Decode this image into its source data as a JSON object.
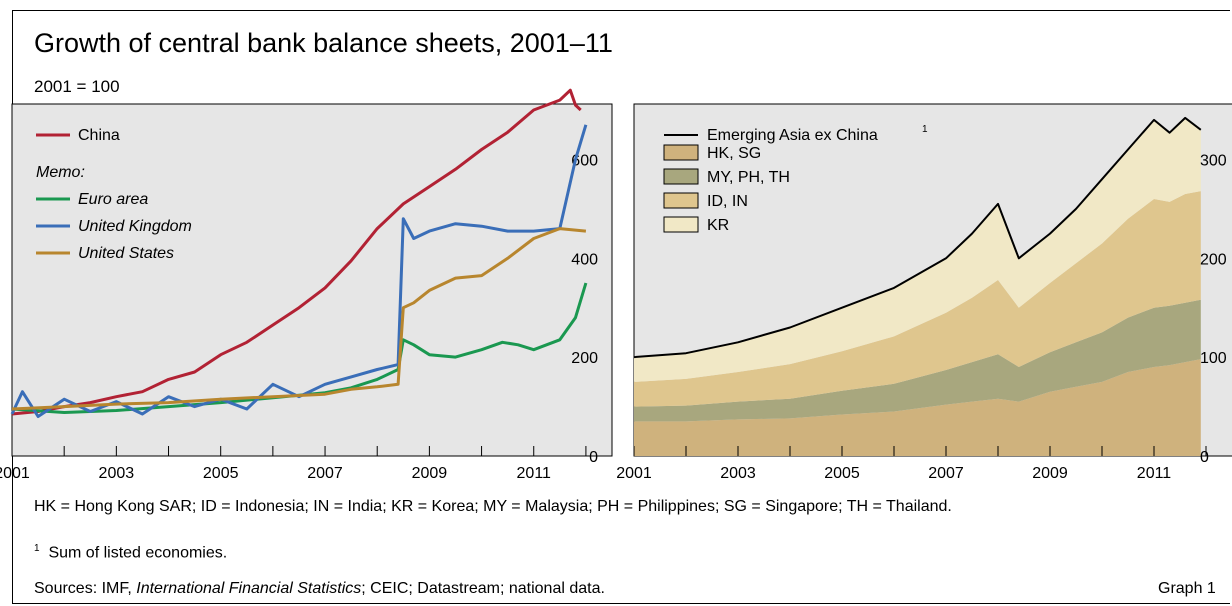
{
  "header": {
    "title": "Growth of central bank balance sheets, 2001–11",
    "subtitle": "2001 = 100"
  },
  "footer": {
    "abbreviations": "HK = Hong Kong SAR; ID = Indonesia; IN = India; KR = Korea; MY = Malaysia; PH = Philippines; SG = Singapore; TH = Thailand.",
    "footnote_mark": "1",
    "footnote_text": "Sum of listed economies.",
    "sources_prefix": "Sources: IMF, ",
    "sources_italic": "International Financial Statistics",
    "sources_suffix": "; CEIC; Datastream; national data.",
    "graph_label": "Graph 1"
  },
  "colors": {
    "panel_bg": "#e6e6e6",
    "china": "#b22234",
    "euro": "#1a9850",
    "uk": "#3a6eb8",
    "us": "#b8862e",
    "em_line": "#000000",
    "hk_sg": "#cfb27d",
    "my_ph_th": "#a8a77e",
    "id_in": "#dfc68e",
    "kr": "#f1e8c6"
  },
  "chart_data": [
    {
      "type": "line",
      "x_ticks": [
        "2001",
        "2003",
        "2005",
        "2007",
        "2009",
        "2011"
      ],
      "y_ticks": [
        "0",
        "200",
        "400",
        "600"
      ],
      "ylim": [
        0,
        700
      ],
      "xlim": [
        2001,
        2012.5
      ],
      "legend": {
        "china": "China",
        "memo": "Memo:",
        "euro": "Euro area",
        "uk": "United Kingdom",
        "us": "United States"
      },
      "series": [
        {
          "key": "china",
          "name": "China",
          "x": [
            2001,
            2001.5,
            2002,
            2002.5,
            2003,
            2003.5,
            2004,
            2004.5,
            2005,
            2005.5,
            2006,
            2006.5,
            2007,
            2007.5,
            2008,
            2008.5,
            2009,
            2009.5,
            2010,
            2010.5,
            2011,
            2011.5,
            2011.7,
            2011.8,
            2011.9
          ],
          "y": [
            85,
            90,
            100,
            108,
            120,
            130,
            155,
            170,
            205,
            230,
            265,
            300,
            340,
            395,
            460,
            510,
            545,
            580,
            620,
            655,
            700,
            720,
            740,
            710,
            700
          ]
        },
        {
          "key": "euro",
          "name": "Euro area",
          "x": [
            2001,
            2002,
            2003,
            2004,
            2005,
            2006,
            2007,
            2007.5,
            2008,
            2008.4,
            2008.5,
            2008.7,
            2009,
            2009.5,
            2010,
            2010.4,
            2010.7,
            2011,
            2011.5,
            2011.8,
            2012
          ],
          "y": [
            95,
            88,
            92,
            100,
            108,
            118,
            128,
            138,
            155,
            175,
            235,
            225,
            205,
            200,
            215,
            230,
            225,
            215,
            235,
            280,
            350
          ]
        },
        {
          "key": "uk",
          "name": "United Kingdom",
          "x": [
            2001,
            2001.2,
            2001.5,
            2002,
            2002.5,
            2003,
            2003.5,
            2004,
            2004.5,
            2005,
            2005.5,
            2006,
            2006.5,
            2007,
            2007.5,
            2008,
            2008.4,
            2008.5,
            2008.7,
            2009,
            2009.5,
            2010,
            2010.5,
            2011,
            2011.5,
            2011.8,
            2012
          ],
          "y": [
            85,
            130,
            80,
            115,
            90,
            110,
            85,
            120,
            100,
            115,
            95,
            145,
            120,
            145,
            160,
            175,
            185,
            480,
            440,
            455,
            470,
            465,
            455,
            455,
            460,
            600,
            670
          ]
        },
        {
          "key": "us",
          "name": "United States",
          "x": [
            2001,
            2002,
            2003,
            2004,
            2005,
            2006,
            2007,
            2007.5,
            2008,
            2008.4,
            2008.5,
            2008.7,
            2009,
            2009.5,
            2010,
            2010.5,
            2011,
            2011.5,
            2012
          ],
          "y": [
            95,
            100,
            105,
            108,
            115,
            120,
            125,
            135,
            140,
            145,
            300,
            310,
            335,
            360,
            365,
            400,
            440,
            460,
            455
          ]
        }
      ]
    },
    {
      "type": "area",
      "x_ticks": [
        "2001",
        "2003",
        "2005",
        "2007",
        "2009",
        "2011"
      ],
      "y_ticks": [
        "0",
        "100",
        "200",
        "300"
      ],
      "ylim": [
        0,
        350
      ],
      "xlim": [
        2001,
        2012.5
      ],
      "legend": {
        "em_line": "Emerging Asia ex China",
        "em_sup": "1",
        "hk_sg": "HK, SG",
        "my_ph_th": "MY, PH, TH",
        "id_in": "ID, IN",
        "kr": "KR"
      },
      "x": [
        2001,
        2002,
        2003,
        2004,
        2005,
        2006,
        2007,
        2007.5,
        2008,
        2008.4,
        2009,
        2009.5,
        2010,
        2010.5,
        2011,
        2011.3,
        2011.6,
        2011.9
      ],
      "stack": [
        {
          "key": "hk_sg",
          "values": [
            35,
            35,
            37,
            38,
            42,
            45,
            52,
            55,
            58,
            55,
            65,
            70,
            75,
            85,
            90,
            92,
            95,
            98
          ]
        },
        {
          "key": "my_ph_th",
          "values": [
            15,
            16,
            18,
            20,
            24,
            28,
            35,
            40,
            45,
            35,
            40,
            45,
            50,
            55,
            60,
            60,
            60,
            60
          ]
        },
        {
          "key": "id_in",
          "values": [
            25,
            27,
            30,
            35,
            40,
            48,
            58,
            65,
            75,
            60,
            70,
            80,
            90,
            100,
            110,
            105,
            110,
            110
          ]
        },
        {
          "key": "kr",
          "values": [
            25,
            26,
            30,
            37,
            44,
            49,
            55,
            65,
            77,
            50,
            50,
            55,
            65,
            70,
            80,
            70,
            77,
            62
          ]
        }
      ],
      "line": {
        "key": "em_line",
        "name": "Emerging Asia ex China",
        "values": [
          100,
          104,
          115,
          130,
          150,
          170,
          200,
          225,
          255,
          200,
          225,
          250,
          280,
          310,
          340,
          327,
          342,
          330
        ]
      }
    }
  ]
}
